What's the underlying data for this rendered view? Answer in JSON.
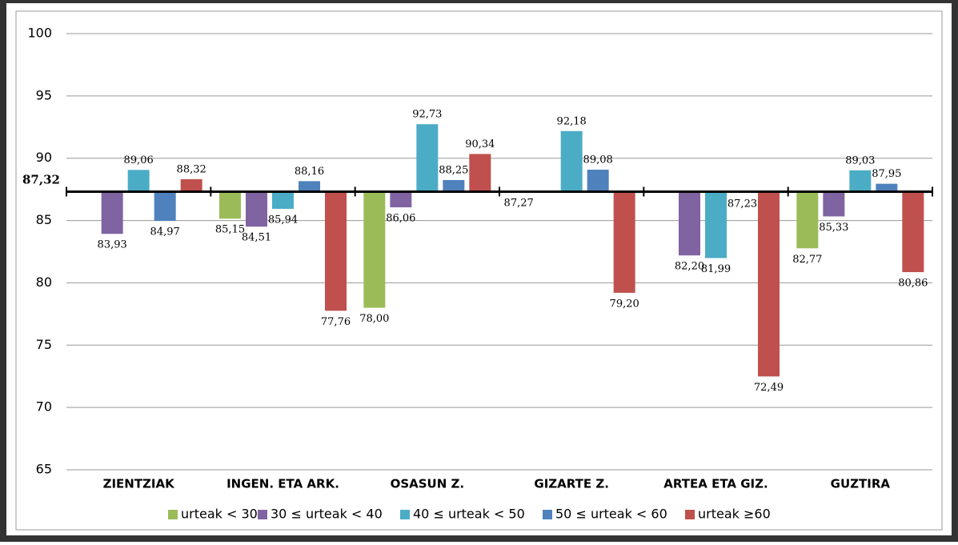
{
  "chart_data": {
    "type": "bar",
    "categories": [
      "ZIENTZIAK",
      "INGEN. ETA ARK.",
      "OSASUN Z.",
      "GIZARTE Z.",
      "ARTEA ETA GIZ.",
      "GUZTIRA"
    ],
    "series": [
      {
        "name": "urteak < 30",
        "color": "#9bbb59",
        "values": [
          null,
          85.15,
          78.0,
          87.27,
          null,
          82.77
        ],
        "value_labels": [
          null,
          "85,15",
          "78,00",
          "87,27",
          null,
          "82,77"
        ]
      },
      {
        "name": "30 ≤ urteak < 40",
        "color": "#8064a2",
        "values": [
          83.93,
          84.51,
          86.06,
          null,
          82.2,
          85.33
        ],
        "value_labels": [
          "83,93",
          "84,51",
          "86,06",
          null,
          "82,20",
          "85,33"
        ]
      },
      {
        "name": "40 ≤ urteak < 50",
        "color": "#4bacc6",
        "values": [
          89.06,
          85.94,
          92.73,
          92.18,
          81.99,
          89.03
        ],
        "value_labels": [
          "89,06",
          "85,94",
          "92,73",
          "92,18",
          "81,99",
          "89,03"
        ]
      },
      {
        "name": "50 ≤ urteak < 60",
        "color": "#4f81bd",
        "values": [
          84.97,
          88.16,
          88.25,
          89.08,
          87.23,
          87.95
        ],
        "value_labels": [
          "84,97",
          "88,16",
          "88,25",
          "89,08",
          "87,23",
          "87,95"
        ]
      },
      {
        "name": "urteak ≥60",
        "color": "#c0504d",
        "values": [
          88.32,
          77.76,
          90.34,
          79.2,
          72.49,
          80.86
        ],
        "value_labels": [
          "88,32",
          "77,76",
          "90,34",
          "79,20",
          "72,49",
          "80,86"
        ]
      }
    ],
    "baseline": 87.32,
    "baseline_label": "87,32",
    "ylim": [
      65,
      100
    ],
    "yticks": [
      65,
      70,
      75,
      80,
      85,
      90,
      95,
      100
    ],
    "grid": true,
    "legend": "bottom"
  }
}
